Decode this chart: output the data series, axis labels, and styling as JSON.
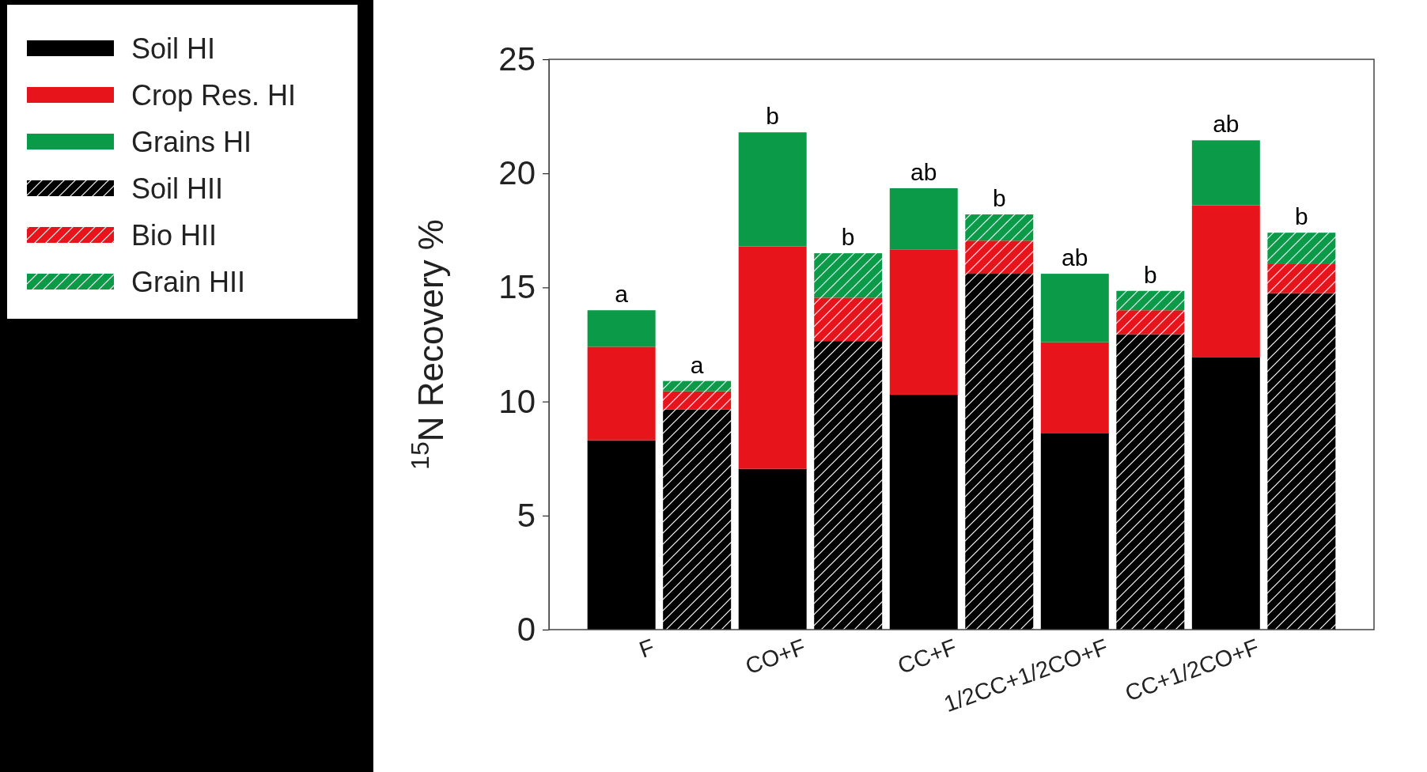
{
  "chart_data": {
    "type": "bar",
    "stacked": true,
    "ylabel": "$^{15}$N Recovery %",
    "ylim": [
      0,
      25
    ],
    "yticks": [
      0,
      5,
      10,
      15,
      20,
      25
    ],
    "legend": "top left",
    "categories": [
      "F",
      null,
      "CO+F",
      null,
      "CC+F",
      null,
      "1/2CC+1/2CO+F",
      null,
      "CC+1/2CO+F",
      null
    ],
    "series": [
      {
        "name": "Soil HI",
        "color": "#000000",
        "values": [
          8.3,
          null,
          7.05,
          null,
          10.3,
          null,
          8.6,
          null,
          11.95,
          null
        ]
      },
      {
        "name": "Crop Res. HI",
        "color": "#e8141b",
        "values": [
          4.1,
          null,
          9.75,
          null,
          6.35,
          null,
          4.0,
          null,
          6.65,
          null
        ]
      },
      {
        "name": "Grains HI",
        "color": "#0a9a48",
        "values": [
          1.6,
          null,
          5.0,
          null,
          2.7,
          null,
          3.0,
          null,
          2.85,
          null
        ]
      },
      {
        "name": "Soil HII",
        "color": "#000000",
        "values": [
          null,
          9.65,
          null,
          12.65,
          null,
          15.6,
          null,
          12.95,
          null,
          14.75
        ]
      },
      {
        "name": "Bio HII",
        "color": "#e8141b",
        "values": [
          null,
          0.8,
          null,
          1.9,
          null,
          1.45,
          null,
          1.05,
          null,
          1.3
        ]
      },
      {
        "name": "Grain HII",
        "color": "#0a9a48",
        "values": [
          null,
          0.45,
          null,
          1.95,
          null,
          1.15,
          null,
          0.85,
          null,
          1.35
        ]
      }
    ],
    "totals": [
      "a",
      "a",
      "b",
      "b",
      "ab",
      "b",
      "ab",
      "b",
      "ab",
      "b"
    ]
  }
}
